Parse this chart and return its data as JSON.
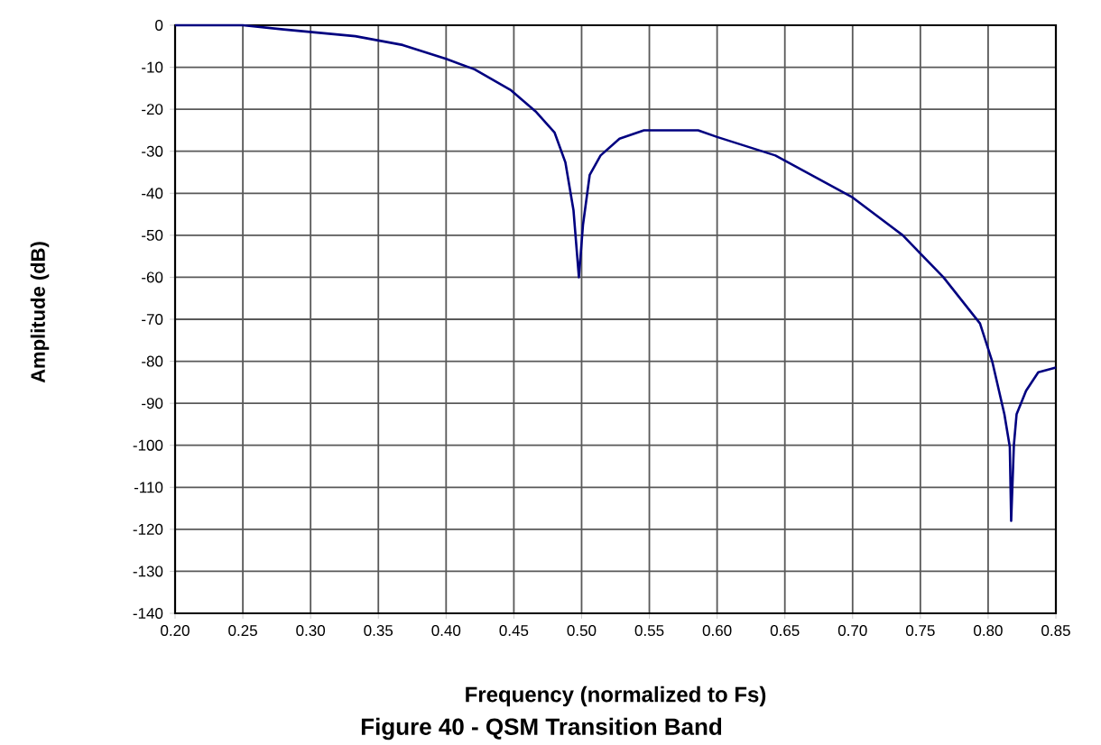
{
  "chart_data": {
    "type": "line",
    "title": "Figure 40 - QSM Transition Band",
    "xlabel": "Frequency (normalized to Fs)",
    "ylabel": "Amplitude (dB)",
    "xlim": [
      0.2,
      0.85
    ],
    "ylim": [
      -140,
      0
    ],
    "xticks": [
      {
        "value": 0.2,
        "label": "0.20"
      },
      {
        "value": 0.25,
        "label": "0.25"
      },
      {
        "value": 0.3,
        "label": "0.30"
      },
      {
        "value": 0.35,
        "label": "0.35"
      },
      {
        "value": 0.4,
        "label": "0.40"
      },
      {
        "value": 0.45,
        "label": "0.45"
      },
      {
        "value": 0.5,
        "label": "0.50"
      },
      {
        "value": 0.55,
        "label": "0.55"
      },
      {
        "value": 0.6,
        "label": "0.60"
      },
      {
        "value": 0.65,
        "label": "0.65"
      },
      {
        "value": 0.7,
        "label": "0.70"
      },
      {
        "value": 0.75,
        "label": "0.75"
      },
      {
        "value": 0.8,
        "label": "0.80"
      },
      {
        "value": 0.85,
        "label": "0.85"
      }
    ],
    "yticks": [
      0,
      -10,
      -20,
      -30,
      -40,
      -50,
      -60,
      -70,
      -80,
      -90,
      -100,
      -110,
      -120,
      -130,
      -140
    ],
    "grid": true,
    "marker": "none",
    "line_style": "solid",
    "series": [
      {
        "color": "#000080",
        "x": [
          0.2,
          0.25,
          0.28,
          0.333,
          0.368,
          0.4,
          0.421,
          0.448,
          0.466,
          0.48,
          0.488,
          0.494,
          0.498,
          0.501,
          0.506,
          0.514,
          0.528,
          0.546,
          0.586,
          0.6,
          0.643,
          0.7,
          0.737,
          0.767,
          0.794,
          0.803,
          0.812,
          0.816,
          0.817,
          0.819,
          0.821,
          0.828,
          0.837,
          0.85
        ],
        "values": [
          0,
          0,
          -1,
          -2.6,
          -4.7,
          -8,
          -10.5,
          -15.5,
          -20.5,
          -25.5,
          -32.6,
          -44,
          -60,
          -47.6,
          -35.6,
          -31,
          -27,
          -25,
          -25,
          -26.6,
          -31,
          -41,
          -50,
          -60,
          -71,
          -80,
          -92.6,
          -100.4,
          -118,
          -100,
          -92.6,
          -87,
          -82.6,
          -81.5
        ]
      }
    ]
  }
}
